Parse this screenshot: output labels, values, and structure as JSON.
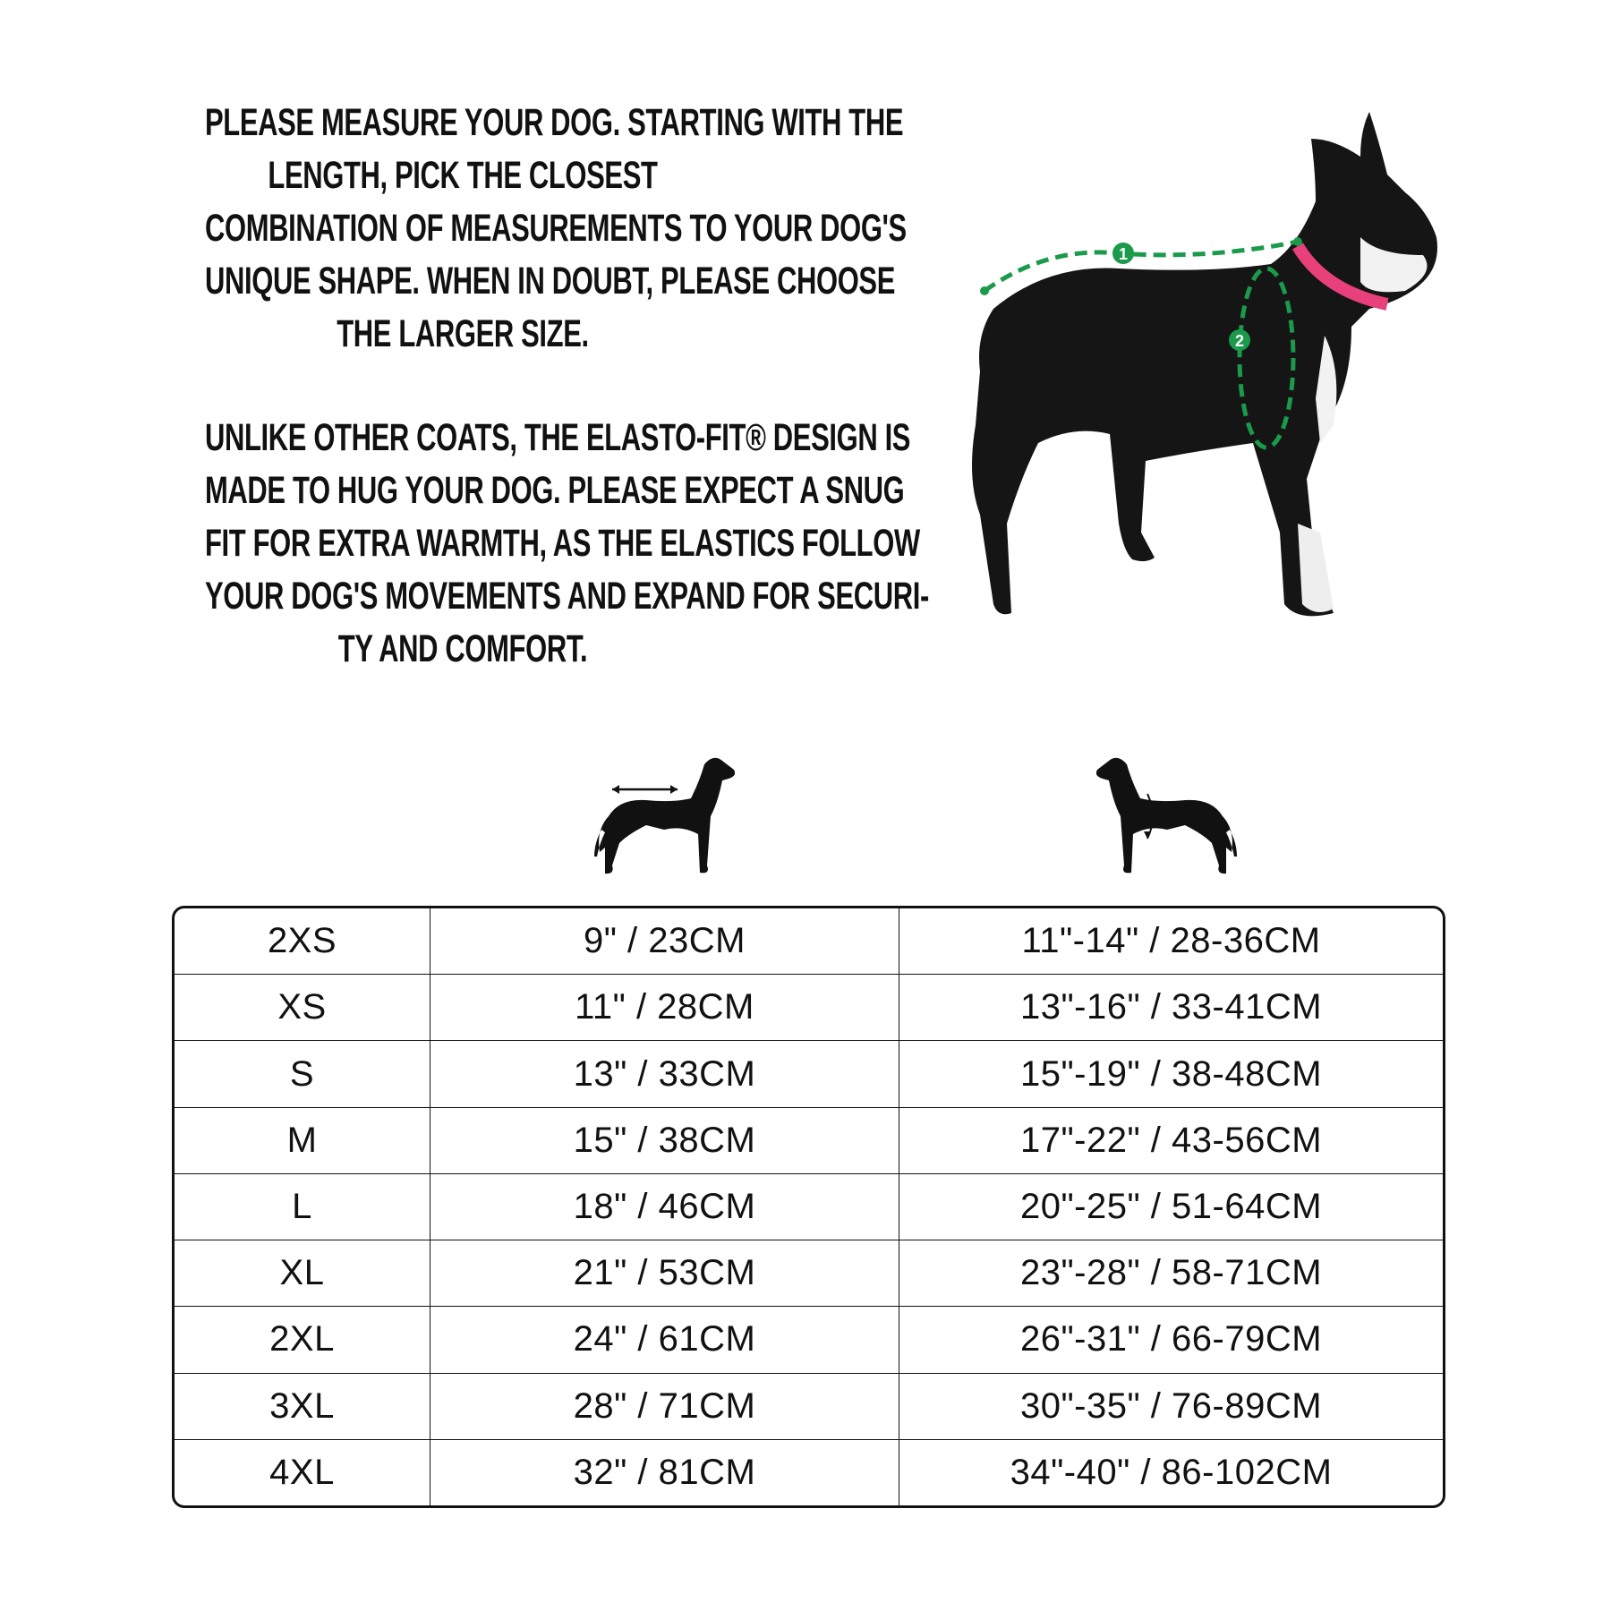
{
  "intro": {
    "paragraph1": [
      "PLEASE MEASURE YOUR DOG. STARTING WITH THE",
      "LENGTH, PICK THE CLOSEST",
      "COMBINATION OF MEASUREMENTS TO YOUR DOG'S",
      "UNIQUE SHAPE. WHEN IN DOUBT, PLEASE CHOOSE",
      "THE LARGER SIZE."
    ],
    "paragraph2": [
      "UNLIKE OTHER COATS, THE ELASTO-FIT® DESIGN IS",
      "MADE TO HUG YOUR DOG. PLEASE EXPECT A SNUG",
      "FIT FOR EXTRA WARMTH, AS THE ELASTICS FOLLOW",
      "YOUR DOG'S MOVEMENTS AND EXPAND FOR SECURI-",
      "TY AND COMFORT."
    ]
  },
  "photo": {
    "markers": [
      "1",
      "2"
    ],
    "marker_color": "#1a9a4a",
    "collar_color": "#e8407a"
  },
  "column_icons": [
    "dog-length-icon",
    "dog-chest-girth-icon"
  ],
  "size_table": {
    "rows": [
      [
        "2XS",
        "9\" / 23CM",
        "11\"-14\" / 28-36CM"
      ],
      [
        "XS",
        "11\" / 28CM",
        "13\"-16\" / 33-41CM"
      ],
      [
        "S",
        "13\" / 33CM",
        "15\"-19\" / 38-48CM"
      ],
      [
        "M",
        "15\" / 38CM",
        "17\"-22\" / 43-56CM"
      ],
      [
        "L",
        "18\" / 46CM",
        "20\"-25\" / 51-64CM"
      ],
      [
        "XL",
        "21\" / 53CM",
        "23\"-28\" / 58-71CM"
      ],
      [
        "2XL",
        "24\" / 61CM",
        "26\"-31\" / 66-79CM"
      ],
      [
        "3XL",
        "28\" / 71CM",
        "30\"-35\" / 76-89CM"
      ],
      [
        "4XL",
        "32\" / 81CM",
        "34\"-40\" / 86-102CM"
      ]
    ]
  }
}
